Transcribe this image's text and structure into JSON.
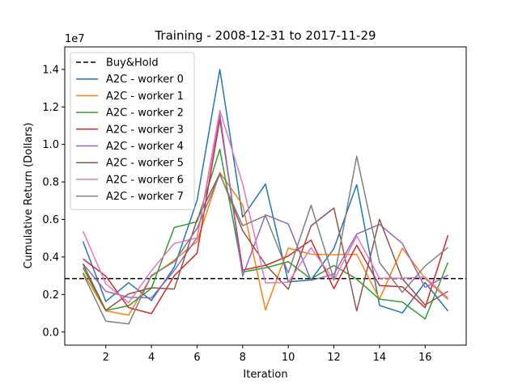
{
  "chart_data": {
    "type": "line",
    "title": "Training - 2008-12-31 to 2017-11-29",
    "xlabel": "Iteration",
    "ylabel": "Cumulative Return (Dollars)",
    "y_offset_label": "1e7",
    "xlim": [
      0.2,
      17.8
    ],
    "ylim": [
      -0.07,
      1.52
    ],
    "x_ticks": [
      2,
      4,
      6,
      8,
      10,
      12,
      14,
      16
    ],
    "x_tick_labels": [
      "2",
      "4",
      "6",
      "8",
      "10",
      "12",
      "14",
      "16"
    ],
    "y_ticks": [
      0.0,
      0.2,
      0.4,
      0.6,
      0.8,
      1.0,
      1.2,
      1.4
    ],
    "y_tick_labels": [
      "0.0",
      "0.2",
      "0.4",
      "0.6",
      "0.8",
      "1.0",
      "1.2",
      "1.4"
    ],
    "legend_position": "top-left",
    "grid": false,
    "x": [
      1,
      2,
      3,
      4,
      5,
      6,
      7,
      8,
      9,
      10,
      11,
      12,
      13,
      14,
      15,
      16,
      17
    ],
    "baseline": {
      "name": "Buy&Hold",
      "value": 0.285,
      "color": "#000000",
      "dash": "dashed"
    },
    "series": [
      {
        "name": "A2C - worker 0",
        "color": "#1f77b4",
        "values": [
          0.483,
          0.163,
          0.263,
          0.168,
          0.345,
          0.701,
          1.4,
          0.612,
          0.789,
          0.267,
          0.278,
          0.445,
          0.786,
          0.142,
          0.102,
          0.264,
          0.112
        ]
      },
      {
        "name": "A2C - worker 1",
        "color": "#ff7f0e",
        "values": [
          0.318,
          0.113,
          0.09,
          0.297,
          0.383,
          0.482,
          0.85,
          0.678,
          0.118,
          0.447,
          0.415,
          0.412,
          0.414,
          0.176,
          0.447,
          0.285,
          0.173
        ]
      },
      {
        "name": "A2C - worker 2",
        "color": "#2ca02c",
        "values": [
          0.343,
          0.115,
          0.14,
          0.233,
          0.557,
          0.588,
          0.974,
          0.32,
          0.342,
          0.375,
          0.283,
          0.355,
          0.282,
          0.175,
          0.16,
          0.07,
          0.371
        ]
      },
      {
        "name": "A2C - worker 3",
        "color": "#d62728",
        "values": [
          0.39,
          0.298,
          0.13,
          0.098,
          0.3,
          0.42,
          1.135,
          0.33,
          0.355,
          0.405,
          0.49,
          0.231,
          0.463,
          0.248,
          0.241,
          0.13,
          0.516
        ]
      },
      {
        "name": "A2C - worker 4",
        "color": "#9467bd",
        "values": [
          0.364,
          0.217,
          0.185,
          0.182,
          0.328,
          0.503,
          1.16,
          0.298,
          0.625,
          0.576,
          0.275,
          0.309,
          0.522,
          0.574,
          0.472,
          0.238,
          0.303
        ]
      },
      {
        "name": "A2C - worker 5",
        "color": "#8c564b",
        "values": [
          0.362,
          0.116,
          0.203,
          0.236,
          0.229,
          0.599,
          0.845,
          0.54,
          0.36,
          0.228,
          0.566,
          0.661,
          0.112,
          0.601,
          0.284,
          0.144,
          0.217
        ]
      },
      {
        "name": "A2C - worker 6",
        "color": "#e377c2",
        "values": [
          0.538,
          0.257,
          0.156,
          0.327,
          0.472,
          0.502,
          1.181,
          0.79,
          0.262,
          0.265,
          0.449,
          0.276,
          0.512,
          0.287,
          0.287,
          0.293,
          0.182
        ]
      },
      {
        "name": "A2C - worker 7",
        "color": "#7f7f7f",
        "values": [
          0.312,
          0.058,
          0.043,
          0.302,
          0.375,
          0.552,
          0.84,
          0.567,
          0.62,
          0.315,
          0.676,
          0.281,
          0.937,
          0.37,
          0.212,
          0.352,
          0.451
        ]
      }
    ]
  }
}
